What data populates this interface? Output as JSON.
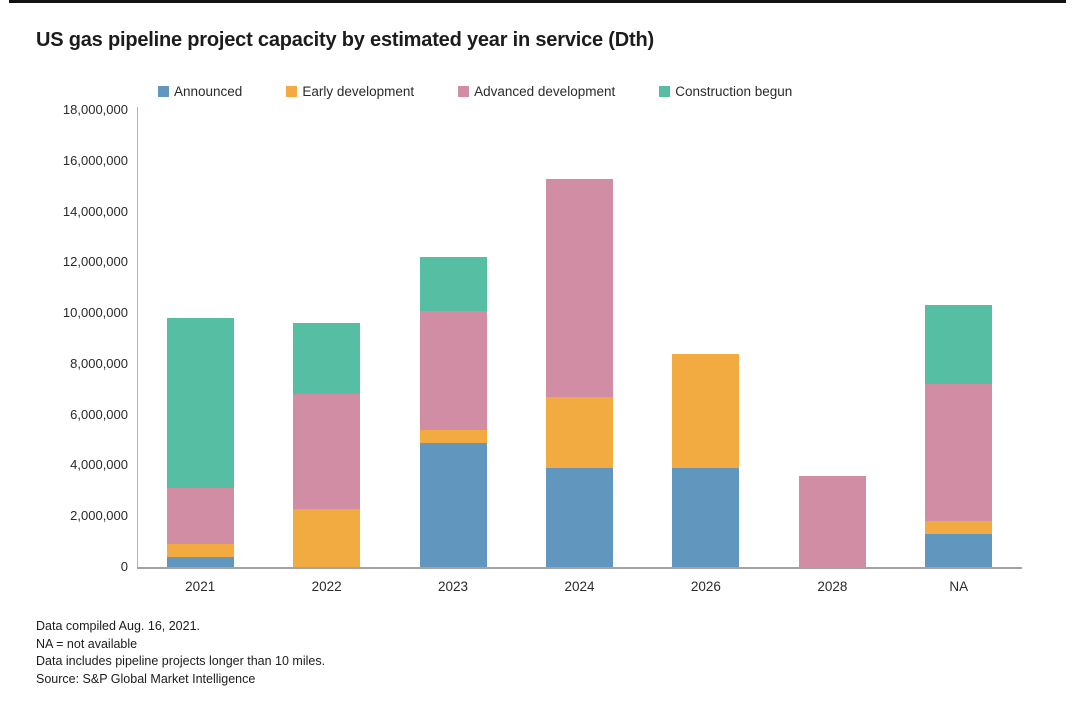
{
  "title": "US gas pipeline project capacity by estimated year in service (Dth)",
  "legend": [
    {
      "label": "Announced",
      "color": "#6197BE"
    },
    {
      "label": "Early development",
      "color": "#F2AB40"
    },
    {
      "label": "Advanced development",
      "color": "#D08DA4"
    },
    {
      "label": "Construction begun",
      "color": "#56BEA3"
    }
  ],
  "chart_data": {
    "type": "bar",
    "stacked": true,
    "title": "US gas pipeline project capacity by estimated year in service (Dth)",
    "categories": [
      "2021",
      "2022",
      "2023",
      "2024",
      "2026",
      "2028",
      "NA"
    ],
    "series": [
      {
        "name": "Announced",
        "color": "#6197BE",
        "values": [
          400000,
          0,
          4900000,
          3900000,
          3900000,
          0,
          1300000
        ]
      },
      {
        "name": "Early development",
        "color": "#F2AB40",
        "values": [
          500000,
          2300000,
          500000,
          2800000,
          4500000,
          0,
          500000
        ]
      },
      {
        "name": "Advanced development",
        "color": "#D08DA4",
        "values": [
          2200000,
          4500000,
          4700000,
          8600000,
          0,
          3600000,
          5400000
        ]
      },
      {
        "name": "Construction begun",
        "color": "#56BEA3",
        "values": [
          6700000,
          2800000,
          2100000,
          0,
          0,
          0,
          3100000
        ]
      }
    ],
    "totals": [
      9800000,
      9600000,
      12200000,
      15300000,
      8400000,
      3600000,
      10300000
    ],
    "xlabel": "",
    "ylabel": "",
    "ylim": [
      0,
      18000000
    ],
    "ytick_interval": 2000000,
    "ytick_labels": [
      "0",
      "2,000,000",
      "4,000,000",
      "6,000,000",
      "8,000,000",
      "10,000,000",
      "12,000,000",
      "14,000,000",
      "16,000,000",
      "18,000,000"
    ],
    "grid": false,
    "legend_position": "top"
  },
  "footnotes": [
    "Data compiled Aug. 16, 2021.",
    "NA = not available",
    "Data includes pipeline projects longer than 10 miles.",
    "Source: S&P Global Market Intelligence"
  ],
  "colors": {
    "announced": "#6197BE",
    "early_development": "#F2AB40",
    "advanced_development": "#D08DA4",
    "construction_begun": "#56BEA3",
    "axis_line": "#a3a3a3",
    "top_rule": "#121212",
    "text": "#1c1c1c"
  }
}
